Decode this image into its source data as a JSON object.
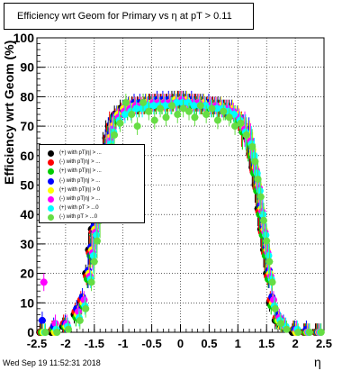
{
  "title": "Efficiency wrt Geom for Primary vs    η at pT > 0.11",
  "timestamp": "Wed Sep 19 11:52:31 2018",
  "chart_data": {
    "type": "scatter",
    "ylabel": "Efficiency wrt Geom (%)",
    "xlabel": "η",
    "xlim": [
      -2.5,
      2.5
    ],
    "ylim": [
      0,
      100
    ],
    "grid": true,
    "legend_position": "left-middle",
    "x_ticks": [
      "-2.5",
      "-2",
      "-1.5",
      "-1",
      "-0.5",
      "0",
      "0.5",
      "1",
      "1.5",
      "2",
      "2.5"
    ],
    "y_ticks": [
      "0",
      "10",
      "20",
      "30",
      "40",
      "50",
      "60",
      "70",
      "80",
      "90",
      "100"
    ],
    "x": [
      -2.4,
      -2.2,
      -2.0,
      -1.8,
      -1.7,
      -1.6,
      -1.55,
      -1.5,
      -1.45,
      -1.4,
      -1.35,
      -1.3,
      -1.25,
      -1.2,
      -1.1,
      -1.0,
      -0.9,
      -0.8,
      -0.7,
      -0.6,
      -0.5,
      -0.4,
      -0.3,
      -0.2,
      -0.1,
      0.0,
      0.1,
      0.2,
      0.3,
      0.4,
      0.5,
      0.6,
      0.7,
      0.8,
      0.9,
      1.0,
      1.1,
      1.2,
      1.25,
      1.3,
      1.35,
      1.4,
      1.45,
      1.5,
      1.55,
      1.6,
      1.7,
      1.8,
      2.0,
      2.2,
      2.4
    ],
    "series": [
      {
        "name": "(+) with pT|η| > ...",
        "color": "#000000",
        "values": [
          0,
          0,
          2,
          6,
          10,
          20,
          28,
          35,
          42,
          50,
          56,
          62,
          66,
          70,
          74,
          76,
          77,
          77,
          77,
          78,
          78,
          78,
          78,
          78,
          79,
          79,
          79,
          78,
          78,
          78,
          77,
          77,
          77,
          76,
          76,
          74,
          70,
          66,
          62,
          56,
          50,
          42,
          35,
          28,
          20,
          10,
          4,
          2,
          0,
          0,
          0
        ]
      },
      {
        "name": "(-) with pT|η| > ...",
        "color": "#ff0000",
        "values": [
          0,
          1,
          3,
          7,
          11,
          19,
          27,
          34,
          41,
          49,
          55,
          61,
          65,
          69,
          73,
          75,
          76,
          77,
          77,
          77,
          78,
          78,
          78,
          78,
          78,
          79,
          78,
          78,
          78,
          77,
          77,
          77,
          76,
          76,
          75,
          73,
          69,
          65,
          60,
          55,
          49,
          41,
          34,
          27,
          19,
          11,
          5,
          2,
          1,
          0,
          0
        ]
      },
      {
        "name": "(+) with pT|η| > ...",
        "color": "#00cc00",
        "values": [
          0,
          1,
          2,
          5,
          9,
          18,
          26,
          33,
          40,
          48,
          54,
          60,
          64,
          68,
          72,
          74,
          75,
          76,
          76,
          77,
          77,
          77,
          77,
          77,
          78,
          78,
          78,
          77,
          77,
          77,
          76,
          76,
          76,
          75,
          74,
          72,
          68,
          64,
          60,
          54,
          48,
          40,
          33,
          26,
          18,
          9,
          4,
          2,
          1,
          0,
          0
        ]
      },
      {
        "name": "(-) with pT|η| > ...",
        "color": "#0000ff",
        "values": [
          4,
          2,
          3,
          8,
          12,
          21,
          29,
          36,
          43,
          51,
          57,
          63,
          67,
          71,
          74,
          76,
          77,
          78,
          78,
          78,
          78,
          79,
          79,
          79,
          79,
          79,
          79,
          79,
          78,
          78,
          78,
          77,
          77,
          76,
          76,
          74,
          71,
          67,
          63,
          57,
          51,
          43,
          36,
          29,
          21,
          12,
          6,
          3,
          1,
          1,
          0
        ]
      },
      {
        "name": "(+) with pT|η| > 0",
        "color": "#ffff00",
        "values": [
          0,
          0,
          2,
          6,
          10,
          20,
          28,
          35,
          42,
          50,
          56,
          62,
          66,
          70,
          74,
          76,
          77,
          77,
          77,
          78,
          78,
          78,
          78,
          78,
          79,
          79,
          79,
          78,
          78,
          78,
          77,
          77,
          77,
          76,
          76,
          74,
          70,
          66,
          62,
          56,
          50,
          42,
          35,
          28,
          20,
          10,
          4,
          2,
          0,
          0,
          0
        ]
      },
      {
        "name": "(-) with pT|η| > ...",
        "color": "#ff00ff",
        "values": [
          17,
          3,
          3,
          7,
          11,
          19,
          27,
          34,
          41,
          49,
          55,
          61,
          65,
          69,
          73,
          75,
          76,
          77,
          77,
          77,
          78,
          78,
          78,
          78,
          78,
          79,
          78,
          78,
          78,
          77,
          77,
          77,
          76,
          76,
          75,
          73,
          69,
          65,
          60,
          55,
          49,
          41,
          34,
          27,
          19,
          11,
          5,
          2,
          1,
          0,
          0
        ]
      },
      {
        "name": "(+) with pT > ...0",
        "color": "#00ffff",
        "values": [
          0,
          1,
          2,
          5,
          9,
          18,
          26,
          33,
          40,
          48,
          54,
          60,
          64,
          68,
          72,
          74,
          75,
          76,
          76,
          77,
          77,
          77,
          77,
          77,
          78,
          78,
          78,
          77,
          77,
          77,
          76,
          76,
          76,
          75,
          74,
          72,
          68,
          64,
          60,
          54,
          48,
          40,
          33,
          26,
          18,
          9,
          4,
          2,
          1,
          0,
          0
        ]
      },
      {
        "name": "(-) with pT > ...0",
        "color": "#66dd44",
        "values": [
          0,
          0,
          1,
          4,
          8,
          17,
          24,
          31,
          38,
          46,
          52,
          58,
          63,
          67,
          71,
          78,
          74,
          70,
          78,
          75,
          72,
          76,
          73,
          77,
          74,
          76,
          75,
          73,
          77,
          74,
          76,
          72,
          75,
          73,
          70,
          71,
          67,
          63,
          58,
          52,
          46,
          38,
          31,
          24,
          17,
          8,
          3,
          1,
          0,
          0,
          0
        ]
      }
    ]
  }
}
